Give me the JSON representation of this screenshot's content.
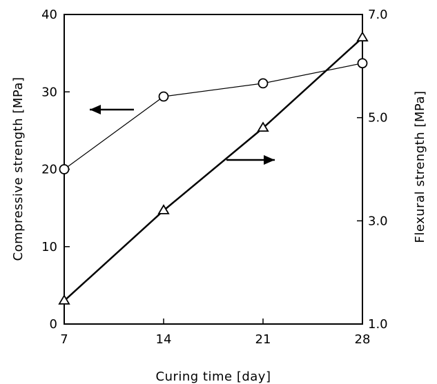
{
  "chart_data": {
    "type": "line",
    "xlabel": "Curing time  [day]",
    "ylabel_left": "Compressive  strength  [MPa]",
    "ylabel_right": "Flexural  strength  [MPa]",
    "x_ticks": [
      7,
      14,
      21,
      28
    ],
    "x_tick_labels": [
      "7",
      "14",
      "21",
      "28"
    ],
    "xlim": [
      7,
      28
    ],
    "y_left_ticks": [
      0,
      10,
      20,
      30,
      40
    ],
    "y_left_tick_labels": [
      "0",
      "10",
      "20",
      "30",
      "40"
    ],
    "ylim_left": [
      0,
      40
    ],
    "y_right_ticks": [
      1.0,
      3.0,
      5.0,
      7.0
    ],
    "y_right_tick_labels": [
      "1.0",
      "3.0",
      "5.0",
      "7.0"
    ],
    "ylim_right": [
      1.0,
      7.0
    ],
    "grid": false,
    "legend": "none",
    "series": [
      {
        "axis": "left",
        "marker": "circle",
        "x": [
          7,
          14,
          21,
          28
        ],
        "y": [
          20.0,
          29.4,
          31.1,
          33.7
        ],
        "color": "#000000"
      },
      {
        "axis": "right",
        "marker": "triangle",
        "x": [
          7,
          14,
          21,
          28
        ],
        "y": [
          1.45,
          3.2,
          4.8,
          6.55
        ],
        "color": "#000000"
      }
    ],
    "annotations": [
      {
        "type": "arrow",
        "direction": "left",
        "points_to_axis": "left"
      },
      {
        "type": "arrow",
        "direction": "right",
        "points_to_axis": "right"
      }
    ]
  }
}
